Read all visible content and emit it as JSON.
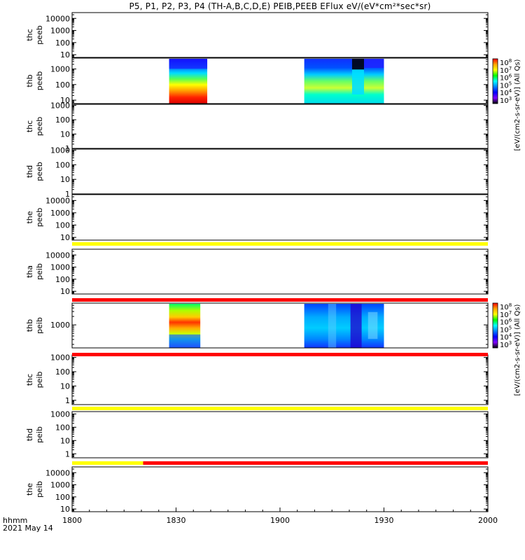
{
  "title": "P5, P1, P2, P3, P4 (TH-A,B,C,D,E) PEIB,PEEB EFlux eV/(eV*cm²*sec*sr)",
  "time_axis": {
    "unit_label": "hhmm",
    "date_label": "2021 May 14",
    "start_min": 0,
    "end_min": 120,
    "ticks": [
      {
        "min": 0,
        "label": "1800"
      },
      {
        "min": 30,
        "label": "1830"
      },
      {
        "min": 60,
        "label": "1900"
      },
      {
        "min": 90,
        "label": "1930"
      },
      {
        "min": 120,
        "label": "2000"
      }
    ]
  },
  "colorbar": {
    "label": "[eV/(cm2-s-sr-eV)] (All Qs)",
    "tick_labels": [
      "10",
      "10",
      "10",
      "10",
      "10",
      "10"
    ],
    "tick_exponents": [
      "8",
      "7",
      "6",
      "5",
      "4",
      "3"
    ],
    "colors": [
      "#ff0000",
      "#ffa500",
      "#ffff00",
      "#00ff00",
      "#00ffff",
      "#0080ff",
      "#0000ff",
      "#8000ff",
      "#000000"
    ]
  },
  "status_colors": {
    "yellow": "#ffff00",
    "red": "#ff0000"
  },
  "chart_data": {
    "type": "heatmap",
    "panels": [
      {
        "probe": "thc",
        "product": "peeb",
        "ymin": 6,
        "ymax": 30000,
        "ticks": [
          "10",
          "100",
          "1000",
          "10000"
        ],
        "blocks": []
      },
      {
        "probe": "thb",
        "product": "peeb",
        "ymin": 6,
        "ymax": 5000,
        "ticks": [
          "10",
          "100",
          "1000"
        ],
        "blocks": [
          {
            "t0": 28,
            "t1": 39,
            "style": "low"
          },
          {
            "t0": 67,
            "t1": 90,
            "style": "mixed"
          }
        ]
      },
      {
        "probe": "thc",
        "product": "peeb",
        "ymin": 1,
        "ymax": 1200,
        "ticks": [
          "1",
          "10",
          "100",
          "1000"
        ],
        "blocks": []
      },
      {
        "probe": "thd",
        "product": "peeb",
        "ymin": 1,
        "ymax": 1200,
        "ticks": [
          "1",
          "10",
          "100",
          "1000"
        ],
        "blocks": []
      },
      {
        "probe": "the",
        "product": "peeb",
        "ymin": 6,
        "ymax": 30000,
        "ticks": [
          "10",
          "100",
          "1000",
          "10000"
        ],
        "blocks": []
      },
      {
        "probe": "tha",
        "product": "peib",
        "ymin": 6,
        "ymax": 30000,
        "ticks": [
          "10",
          "100",
          "1000",
          "10000"
        ],
        "blocks": []
      },
      {
        "probe": "thb",
        "product": "peib",
        "ymin": 150,
        "ymax": 6000,
        "ticks": [
          "1000"
        ],
        "blocks": [
          {
            "t0": 28,
            "t1": 37,
            "style": "low"
          },
          {
            "t0": 67,
            "t1": 90,
            "style": "high"
          }
        ]
      },
      {
        "probe": "thc",
        "product": "peib",
        "ymin": 0.5,
        "ymax": 1500,
        "ticks": [
          "1",
          "10",
          "100",
          "1000"
        ],
        "blocks": []
      },
      {
        "probe": "thd",
        "product": "peib",
        "ymin": 0.5,
        "ymax": 1500,
        "ticks": [
          "1",
          "10",
          "100",
          "1000"
        ],
        "blocks": []
      },
      {
        "probe": "the",
        "product": "peib",
        "ymin": 6,
        "ymax": 30000,
        "ticks": [
          "10",
          "100",
          "1000",
          "10000"
        ],
        "blocks": []
      }
    ],
    "status_bars": [
      {
        "after_panel": 4,
        "segments": [
          {
            "t0": 0,
            "t1": 120,
            "color": "yellow"
          }
        ]
      },
      {
        "after_panel": 5,
        "segments": [
          {
            "t0": 0,
            "t1": 120,
            "color": "red"
          }
        ]
      },
      {
        "after_panel": 6,
        "segments": [
          {
            "t0": 0,
            "t1": 120,
            "color": "red"
          }
        ]
      },
      {
        "after_panel": 7,
        "segments": [
          {
            "t0": 0,
            "t1": 120,
            "color": "yellow"
          }
        ]
      },
      {
        "after_panel": 8,
        "segments": [
          {
            "t0": 0,
            "t1": 20.5,
            "color": "yellow"
          },
          {
            "t0": 20.5,
            "t1": 120,
            "color": "red"
          }
        ]
      }
    ]
  }
}
